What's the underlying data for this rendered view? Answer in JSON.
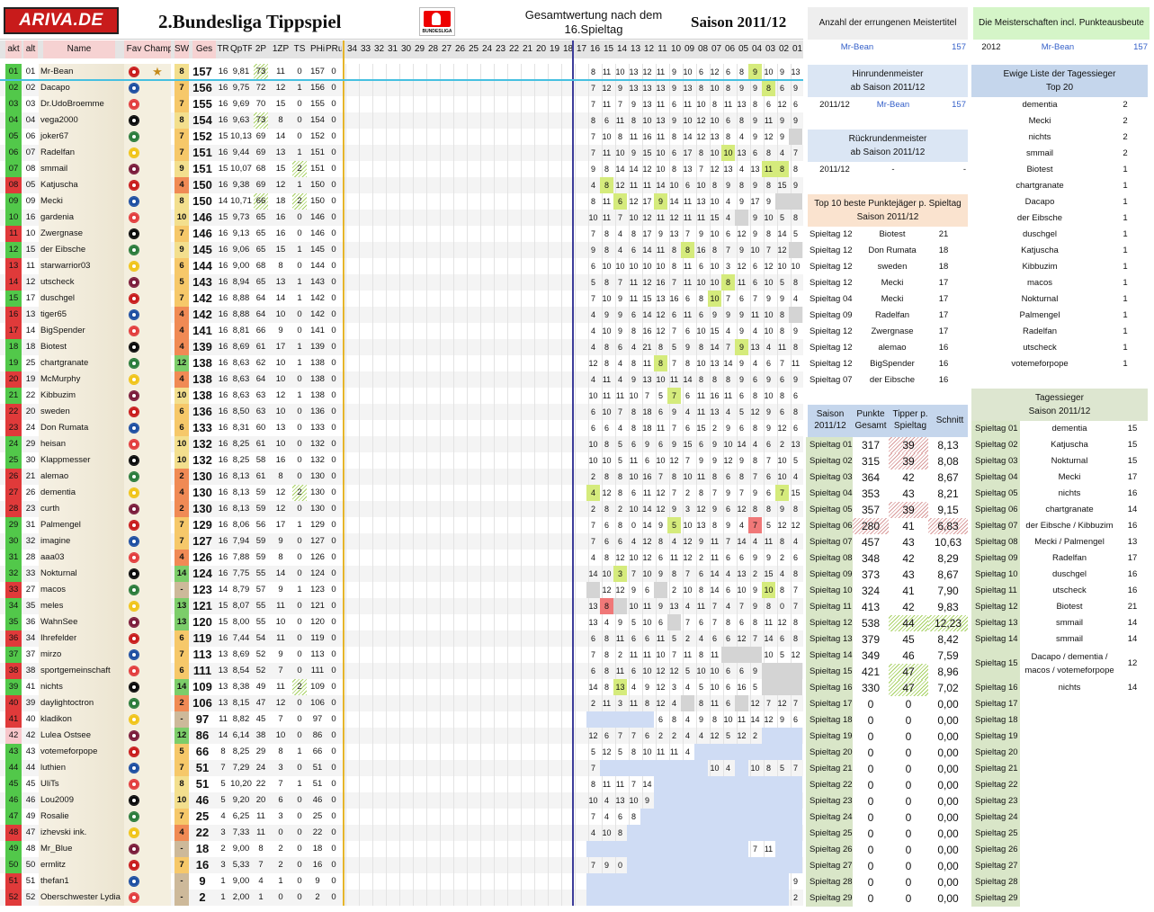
{
  "header": {
    "logo": "ARIVA.DE",
    "title": "2.Bundesliga Tippspiel",
    "gesamt": "Gesamtwertung nach dem 16.Spieltag",
    "saison": "Saison 2011/12",
    "bundesliga_logo": "BUNDESLIGA"
  },
  "columns": [
    "akt",
    "alt",
    "Name",
    "Fav",
    "Champ",
    "SW",
    "Ges",
    "TR",
    "QpTR",
    "2P",
    "1ZP",
    "TS",
    "PHi",
    "PRu",
    "34",
    "33",
    "32",
    "31",
    "30",
    "29",
    "28",
    "27",
    "26",
    "25",
    "24",
    "23",
    "22",
    "21",
    "20",
    "19",
    "18",
    "17",
    "16",
    "15",
    "14",
    "13",
    "12",
    "11",
    "10",
    "09",
    "08",
    "07",
    "06",
    "05",
    "04",
    "03",
    "02",
    "01"
  ],
  "colors": {
    "accent": "#c8e0ea",
    "highlight": "#d5eb7c",
    "loss": "#f07878",
    "future": "#cfdcf4"
  },
  "rows": [
    [
      "01",
      "01",
      "Mr-Bean",
      "8",
      "157",
      "16",
      "9,81",
      "73",
      "11",
      "0",
      "157",
      "0",
      "8 11 10 13 12 11 9 10 6 12 6 8 9 10 9 13"
    ],
    [
      "02",
      "02",
      "Dacapo",
      "7",
      "156",
      "16",
      "9,75",
      "72",
      "12",
      "1",
      "156",
      "0",
      "7 12 9 13 13 13 9 13 8 10 8 9 9 8 6 9"
    ],
    [
      "03",
      "03",
      "Dr.UdoBroemme",
      "7",
      "155",
      "16",
      "9,69",
      "70",
      "15",
      "0",
      "155",
      "0",
      "7 11 7 9 13 11 6 11 10 8 11 13 8 6 12 6"
    ],
    [
      "04",
      "04",
      "vega2000",
      "8",
      "154",
      "16",
      "9,63",
      "73",
      "8",
      "0",
      "154",
      "0",
      "8 6 11 8 10 13 9 10 12 10 6 8 9 11 9 9"
    ],
    [
      "05",
      "06",
      "joker67",
      "7",
      "152",
      "15",
      "10,13",
      "69",
      "14",
      "0",
      "152",
      "0",
      "7 10 8 11 16 11 8 14 12 13 8 4 9 12 9 -"
    ],
    [
      "06",
      "07",
      "Radelfan",
      "7",
      "151",
      "16",
      "9,44",
      "69",
      "13",
      "1",
      "151",
      "0",
      "7 11 10 9 15 10 6 17 8 10 10 13 6 8 4 7"
    ],
    [
      "07",
      "08",
      "smmail",
      "9",
      "151",
      "15",
      "10,07",
      "68",
      "15",
      "2",
      "151",
      "0",
      "9 8 14 14 12 10 8 13 7 12 13 4 13 11 8 8"
    ],
    [
      "08",
      "05",
      "Katjuscha",
      "4",
      "150",
      "16",
      "9,38",
      "69",
      "12",
      "1",
      "150",
      "0",
      "4 8 12 11 11 14 10 6 10 8 9 8 9 8 15 9"
    ],
    [
      "09",
      "09",
      "Mecki",
      "8",
      "150",
      "14",
      "10,71",
      "66",
      "18",
      "2",
      "150",
      "0",
      "8 11 6 12 17 9 14 11 13 10 4 9 17 9 - -"
    ],
    [
      "10",
      "16",
      "gardenia",
      "10",
      "146",
      "15",
      "9,73",
      "65",
      "16",
      "0",
      "146",
      "0",
      "10 11 7 10 12 11 12 11 11 15 4 - 9 10 5 8"
    ],
    [
      "11",
      "10",
      "Zwergnase",
      "7",
      "146",
      "16",
      "9,13",
      "65",
      "16",
      "0",
      "146",
      "0",
      "7 8 4 8 17 9 13 7 9 10 6 12 9 8 14 5"
    ],
    [
      "12",
      "15",
      "der Eibsche",
      "9",
      "145",
      "16",
      "9,06",
      "65",
      "15",
      "1",
      "145",
      "0",
      "9 8 4 6 14 11 8 8 16 8 7 9 10 7 12 -"
    ],
    [
      "13",
      "11",
      "starwarrior03",
      "6",
      "144",
      "16",
      "9,00",
      "68",
      "8",
      "0",
      "144",
      "0",
      "6 10 10 10 10 10 8 11 6 10 3 12 6 12 10 10"
    ],
    [
      "14",
      "12",
      "utscheck",
      "5",
      "143",
      "16",
      "8,94",
      "65",
      "13",
      "1",
      "143",
      "0",
      "5 8 7 11 12 16 7 11 10 10 8 11 6 10 5 8"
    ],
    [
      "15",
      "17",
      "duschgel",
      "7",
      "142",
      "16",
      "8,88",
      "64",
      "14",
      "1",
      "142",
      "0",
      "7 10 9 11 15 13 16 6 8 10 7 6 7 9 9 4"
    ],
    [
      "16",
      "13",
      "tiger65",
      "4",
      "142",
      "16",
      "8,88",
      "64",
      "10",
      "0",
      "142",
      "0",
      "4 9 9 6 14 12 6 11 6 9 9 9 11 10 8 -"
    ],
    [
      "17",
      "14",
      "BigSpender",
      "4",
      "141",
      "16",
      "8,81",
      "66",
      "9",
      "0",
      "141",
      "0",
      "4 10 9 8 16 12 7 6 10 15 4 9 4 10 8 9"
    ],
    [
      "18",
      "18",
      "Biotest",
      "4",
      "139",
      "16",
      "8,69",
      "61",
      "17",
      "1",
      "139",
      "0",
      "4 8 6 4 21 8 5 9 8 14 7 9 13 4 11 8"
    ],
    [
      "19",
      "25",
      "chartgranate",
      "12",
      "138",
      "16",
      "8,63",
      "62",
      "10",
      "1",
      "138",
      "0",
      "12 8 4 8 11 8 7 8 10 13 14 9 4 6 7 11"
    ],
    [
      "20",
      "19",
      "McMurphy",
      "4",
      "138",
      "16",
      "8,63",
      "64",
      "10",
      "0",
      "138",
      "0",
      "4 11 4 9 13 10 11 14 8 8 8 9 6 9 6 9"
    ],
    [
      "21",
      "22",
      "Kibbuzim",
      "10",
      "138",
      "16",
      "8,63",
      "63",
      "12",
      "1",
      "138",
      "0",
      "10 11 11 10 7 5 7 6 11 16 11 6 8 10 8 6"
    ],
    [
      "22",
      "20",
      "sweden",
      "6",
      "136",
      "16",
      "8,50",
      "63",
      "10",
      "0",
      "136",
      "0",
      "6 10 7 8 18 6 9 4 11 13 4 5 12 9 6 8"
    ],
    [
      "23",
      "24",
      "Don Rumata",
      "6",
      "133",
      "16",
      "8,31",
      "60",
      "13",
      "0",
      "133",
      "0",
      "6 6 4 8 18 11 7 6 15 2 9 6 8 9 12 6"
    ],
    [
      "24",
      "29",
      "heisan",
      "10",
      "132",
      "16",
      "8,25",
      "61",
      "10",
      "0",
      "132",
      "0",
      "10 8 5 6 9 6 9 15 6 9 10 14 4 6 2 13"
    ],
    [
      "25",
      "30",
      "Klappmesser",
      "10",
      "132",
      "16",
      "8,25",
      "58",
      "16",
      "0",
      "132",
      "0",
      "10 10 5 11 6 10 12 7 9 9 12 9 8 7 10 5"
    ],
    [
      "26",
      "21",
      "alemao",
      "2",
      "130",
      "16",
      "8,13",
      "61",
      "8",
      "0",
      "130",
      "0",
      "2 8 8 10 16 7 8 10 11 8 6 8 7 6 10 4"
    ],
    [
      "27",
      "26",
      "dementia",
      "4",
      "130",
      "16",
      "8,13",
      "59",
      "12",
      "2",
      "130",
      "0",
      "4 12 8 6 11 12 7 2 8 7 9 7 9 6 7 15"
    ],
    [
      "28",
      "23",
      "curth",
      "2",
      "130",
      "16",
      "8,13",
      "59",
      "12",
      "0",
      "130",
      "0",
      "2 8 2 10 14 12 9 3 12 9 6 12 8 8 9 8"
    ],
    [
      "29",
      "31",
      "Palmengel",
      "7",
      "129",
      "16",
      "8,06",
      "56",
      "17",
      "1",
      "129",
      "0",
      "7 6 8 0 14 9 5 10 13 8 9 4 7 5 12 12"
    ],
    [
      "30",
      "32",
      "imagine",
      "7",
      "127",
      "16",
      "7,94",
      "59",
      "9",
      "0",
      "127",
      "0",
      "7 6 6 4 12 8 4 12 9 11 7 14 4 11 8 4"
    ],
    [
      "31",
      "28",
      "aaa03",
      "4",
      "126",
      "16",
      "7,88",
      "59",
      "8",
      "0",
      "126",
      "0",
      "4 8 12 10 12 6 11 12 2 11 6 6 9 9 2 6"
    ],
    [
      "32",
      "33",
      "Nokturnal",
      "14",
      "124",
      "16",
      "7,75",
      "55",
      "14",
      "0",
      "124",
      "0",
      "14 10 3 7 10 9 8 7 6 14 4 13 2 15 4 8"
    ],
    [
      "33",
      "27",
      "macos",
      "-",
      "123",
      "14",
      "8,79",
      "57",
      "9",
      "1",
      "123",
      "0",
      "- 12 12 9 6 - 2 10 8 14 6 10 9 10 8 7"
    ],
    [
      "34",
      "35",
      "meles",
      "13",
      "121",
      "15",
      "8,07",
      "55",
      "11",
      "0",
      "121",
      "0",
      "13 8 - 10 11 9 13 4 11 7 4 7 9 8 0 7"
    ],
    [
      "35",
      "36",
      "WahnSee",
      "13",
      "120",
      "15",
      "8,00",
      "55",
      "10",
      "0",
      "120",
      "0",
      "13 4 9 5 10 6 - 7 6 7 8 6 8 11 12 8"
    ],
    [
      "36",
      "34",
      "Ihrefelder",
      "6",
      "119",
      "16",
      "7,44",
      "54",
      "11",
      "0",
      "119",
      "0",
      "6 8 11 6 6 11 5 2 4 6 6 12 7 14 6 8"
    ],
    [
      "37",
      "37",
      "mirzo",
      "7",
      "113",
      "13",
      "8,69",
      "52",
      "9",
      "0",
      "113",
      "0",
      "7 8 2 11 11 10 7 11 8 11 - - - 10 5 12"
    ],
    [
      "38",
      "38",
      "sportgemeinschaft",
      "6",
      "111",
      "13",
      "8,54",
      "52",
      "7",
      "0",
      "111",
      "0",
      "6 8 11 6 10 12 12 5 10 10 6 6 9 - - -"
    ],
    [
      "39",
      "41",
      "nichts",
      "14",
      "109",
      "13",
      "8,38",
      "49",
      "11",
      "2",
      "109",
      "0",
      "14 8 13 4 9 12 3 4 5 10 6 16 5 - - -"
    ],
    [
      "40",
      "39",
      "daylightoctron",
      "2",
      "106",
      "13",
      "8,15",
      "47",
      "12",
      "0",
      "106",
      "0",
      "2 11 3 11 8 12 4 - 8 11 6 - 12 7 12 7"
    ],
    [
      "41",
      "40",
      "kladikon",
      "-",
      "97",
      "11",
      "8,82",
      "45",
      "7",
      "0",
      "97",
      "0",
      "- - - - - 6 8 4 9 8 10 11 14 12 9 6"
    ],
    [
      "42",
      "42",
      "Lulea Ostsee",
      "12",
      "86",
      "14",
      "6,14",
      "38",
      "10",
      "0",
      "86",
      "0",
      "12 6 7 7 6 2 2 4 4 12 5 12 2 - - -"
    ],
    [
      "43",
      "43",
      "votemeforpope",
      "5",
      "66",
      "8",
      "8,25",
      "29",
      "8",
      "1",
      "66",
      "0",
      "5 12 5 8 10 11 11 4 - - - - - - - -"
    ],
    [
      "44",
      "44",
      "luthien",
      "7",
      "51",
      "7",
      "7,29",
      "24",
      "3",
      "0",
      "51",
      "0",
      "7 - - - - - - - - 10 4 - 10 8 5 7"
    ],
    [
      "45",
      "45",
      "UliTs",
      "8",
      "51",
      "5",
      "10,20",
      "22",
      "7",
      "1",
      "51",
      "0",
      "8 11 11 7 14 - - - - - - - - - - -"
    ],
    [
      "46",
      "46",
      "Lou2009",
      "10",
      "46",
      "5",
      "9,20",
      "20",
      "6",
      "0",
      "46",
      "0",
      "10 4 13 10 9 - - - - - - - - - - -"
    ],
    [
      "47",
      "49",
      "Rosalie",
      "7",
      "25",
      "4",
      "6,25",
      "11",
      "3",
      "0",
      "25",
      "0",
      "7 4 6 8 - - - - - - - - - - - -"
    ],
    [
      "48",
      "47",
      "izhevski ink.",
      "4",
      "22",
      "3",
      "7,33",
      "11",
      "0",
      "0",
      "22",
      "0",
      "4 10 8 - - - - - - - - - - - - -"
    ],
    [
      "49",
      "48",
      "Mr_Blue",
      "-",
      "18",
      "2",
      "9,00",
      "8",
      "2",
      "0",
      "18",
      "0",
      "- - - - - - - - - - - - 7 11 - -"
    ],
    [
      "50",
      "50",
      "ermlitz",
      "7",
      "16",
      "3",
      "5,33",
      "7",
      "2",
      "0",
      "16",
      "0",
      "7 9 0 - - - - - - - - - - - - -"
    ],
    [
      "51",
      "51",
      "thefan1",
      "-",
      "9",
      "1",
      "9,00",
      "4",
      "1",
      "0",
      "9",
      "0",
      "- - - - - - - - - - - - - - - 9"
    ],
    [
      "52",
      "52",
      "Oberschwester Lydia",
      "-",
      "2",
      "1",
      "2,00",
      "1",
      "0",
      "0",
      "2",
      "0",
      "- - - - - - - - - - - - - - - 2"
    ]
  ],
  "meister": {
    "title": "Anzahl der errungenen Meistertitel",
    "name": "Mr-Bean",
    "val": "157"
  },
  "punkte": {
    "title": "Die Meisterschaften incl. Punkteausbeute",
    "year": "2012",
    "name": "Mr-Bean",
    "val": "157"
  },
  "hinrunde": {
    "title1": "Hinrundenmeister",
    "title2": "ab Saison 2011/12",
    "season": "2011/12",
    "name": "Mr-Bean",
    "val": "157"
  },
  "rueckrunde": {
    "title1": "Rückrundenmeister",
    "title2": "ab Saison 2011/12",
    "season": "2011/12",
    "name": "-",
    "val": "-"
  },
  "top10": {
    "title1": "Top 10 beste Punktejäger p. Spieltag",
    "title2": "Saison 2011/12",
    "rows": [
      [
        "Spieltag 12",
        "Biotest",
        "21"
      ],
      [
        "Spieltag 12",
        "Don Rumata",
        "18"
      ],
      [
        "Spieltag 12",
        "sweden",
        "18"
      ],
      [
        "Spieltag 12",
        "Mecki",
        "17"
      ],
      [
        "Spieltag 04",
        "Mecki",
        "17"
      ],
      [
        "Spieltag 09",
        "Radelfan",
        "17"
      ],
      [
        "Spieltag 12",
        "Zwergnase",
        "17"
      ],
      [
        "Spieltag 12",
        "alemao",
        "16"
      ],
      [
        "Spieltag 12",
        "BigSpender",
        "16"
      ],
      [
        "Spieltag 07",
        "der Eibsche",
        "16"
      ]
    ]
  },
  "ewige": {
    "title1": "Ewige Liste der Tagessieger",
    "title2": "Top 20",
    "rows": [
      [
        "dementia",
        "2"
      ],
      [
        "Mecki",
        "2"
      ],
      [
        "nichts",
        "2"
      ],
      [
        "smmail",
        "2"
      ],
      [
        "Biotest",
        "1"
      ],
      [
        "chartgranate",
        "1"
      ],
      [
        "Dacapo",
        "1"
      ],
      [
        "der Eibsche",
        "1"
      ],
      [
        "duschgel",
        "1"
      ],
      [
        "Katjuscha",
        "1"
      ],
      [
        "Kibbuzim",
        "1"
      ],
      [
        "macos",
        "1"
      ],
      [
        "Nokturnal",
        "1"
      ],
      [
        "Palmengel",
        "1"
      ],
      [
        "Radelfan",
        "1"
      ],
      [
        "utscheck",
        "1"
      ],
      [
        "votemeforpope",
        "1"
      ]
    ]
  },
  "stats": {
    "h1": "Saison 2011/12",
    "h2": "Punkte Gesamt",
    "h3": "Tipper p. Spieltag",
    "h4": "Schnitt",
    "rows": [
      [
        "Spieltag 01",
        "317",
        "39",
        "8,13"
      ],
      [
        "Spieltag 02",
        "315",
        "39",
        "8,08"
      ],
      [
        "Spieltag 03",
        "364",
        "42",
        "8,67"
      ],
      [
        "Spieltag 04",
        "353",
        "43",
        "8,21"
      ],
      [
        "Spieltag 05",
        "357",
        "39",
        "9,15"
      ],
      [
        "Spieltag 06",
        "280",
        "41",
        "6,83"
      ],
      [
        "Spieltag 07",
        "457",
        "43",
        "10,63"
      ],
      [
        "Spieltag 08",
        "348",
        "42",
        "8,29"
      ],
      [
        "Spieltag 09",
        "373",
        "43",
        "8,67"
      ],
      [
        "Spieltag 10",
        "324",
        "41",
        "7,90"
      ],
      [
        "Spieltag 11",
        "413",
        "42",
        "9,83"
      ],
      [
        "Spieltag 12",
        "538",
        "44",
        "12,23"
      ],
      [
        "Spieltag 13",
        "379",
        "45",
        "8,42"
      ],
      [
        "Spieltag 14",
        "349",
        "46",
        "7,59"
      ],
      [
        "Spieltag 15",
        "421",
        "47",
        "8,96"
      ],
      [
        "Spieltag 16",
        "330",
        "47",
        "7,02"
      ],
      [
        "Spieltag 17",
        "0",
        "0",
        "0,00"
      ],
      [
        "Spieltag 18",
        "0",
        "0",
        "0,00"
      ],
      [
        "Spieltag 19",
        "0",
        "0",
        "0,00"
      ],
      [
        "Spieltag 20",
        "0",
        "0",
        "0,00"
      ],
      [
        "Spieltag 21",
        "0",
        "0",
        "0,00"
      ],
      [
        "Spieltag 22",
        "0",
        "0",
        "0,00"
      ],
      [
        "Spieltag 23",
        "0",
        "0",
        "0,00"
      ],
      [
        "Spieltag 24",
        "0",
        "0",
        "0,00"
      ],
      [
        "Spieltag 25",
        "0",
        "0",
        "0,00"
      ],
      [
        "Spieltag 26",
        "0",
        "0",
        "0,00"
      ],
      [
        "Spieltag 27",
        "0",
        "0",
        "0,00"
      ],
      [
        "Spieltag 28",
        "0",
        "0",
        "0,00"
      ],
      [
        "Spieltag 29",
        "0",
        "0",
        "0,00"
      ]
    ]
  },
  "tagessieger": {
    "title1": "Tagessieger",
    "title2": "Saison 2011/12",
    "rows": [
      [
        "Spieltag 01",
        "dementia",
        "15"
      ],
      [
        "Spieltag 02",
        "Katjuscha",
        "15"
      ],
      [
        "Spieltag 03",
        "Nokturnal",
        "15"
      ],
      [
        "Spieltag 04",
        "Mecki",
        "17"
      ],
      [
        "Spieltag 05",
        "nichts",
        "16"
      ],
      [
        "Spieltag 06",
        "chartgranate",
        "14"
      ],
      [
        "Spieltag 07",
        "der Eibsche / Kibbuzim",
        "16"
      ],
      [
        "Spieltag 08",
        "Mecki / Palmengel",
        "13"
      ],
      [
        "Spieltag 09",
        "Radelfan",
        "17"
      ],
      [
        "Spieltag 10",
        "duschgel",
        "16"
      ],
      [
        "Spieltag 11",
        "utscheck",
        "16"
      ],
      [
        "Spieltag 12",
        "Biotest",
        "21"
      ],
      [
        "Spieltag 13",
        "smmail",
        "14"
      ],
      [
        "Spieltag 14",
        "smmail",
        "14"
      ],
      [
        "Spieltag 15",
        "Dacapo / dementia / macos / votemeforpope",
        "12"
      ],
      [
        "Spieltag 16",
        "nichts",
        "14"
      ],
      [
        "Spieltag 17",
        "",
        ""
      ],
      [
        "Spieltag 18",
        "",
        ""
      ],
      [
        "Spieltag 19",
        "",
        ""
      ],
      [
        "Spieltag 20",
        "",
        ""
      ],
      [
        "Spieltag 21",
        "",
        ""
      ],
      [
        "Spieltag 22",
        "",
        ""
      ],
      [
        "Spieltag 23",
        "",
        ""
      ],
      [
        "Spieltag 24",
        "",
        ""
      ],
      [
        "Spieltag 25",
        "",
        ""
      ],
      [
        "Spieltag 26",
        "",
        ""
      ],
      [
        "Spieltag 27",
        "",
        ""
      ],
      [
        "Spieltag 28",
        "",
        ""
      ],
      [
        "Spieltag 29",
        "",
        ""
      ]
    ]
  }
}
